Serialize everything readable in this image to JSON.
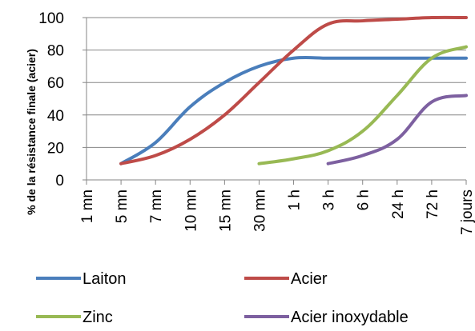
{
  "chart_data": {
    "type": "line",
    "xlabel": "",
    "ylabel": "% de la résistance finale (acier)",
    "ylim": [
      0,
      100
    ],
    "yticks": [
      0,
      20,
      40,
      60,
      80,
      100
    ],
    "categories": [
      "1 mn",
      "5 mn",
      "7 mn",
      "10 mn",
      "15 mn",
      "30 mn",
      "1 h",
      "3 h",
      "6 h",
      "24 h",
      "72 h",
      "7 jours"
    ],
    "grid": true,
    "legend": "bottom",
    "series": [
      {
        "name": "Laiton",
        "color": "#4a7ebb",
        "values": [
          null,
          10,
          23,
          45,
          60,
          70,
          75,
          75,
          75,
          75,
          75,
          75
        ]
      },
      {
        "name": "Acier",
        "color": "#be4b48",
        "values": [
          null,
          10,
          15,
          25,
          40,
          60,
          80,
          96,
          98,
          99,
          100,
          100
        ]
      },
      {
        "name": "Zinc",
        "color": "#98b954",
        "values": [
          null,
          null,
          null,
          null,
          null,
          10,
          13,
          18,
          30,
          52,
          75,
          82
        ]
      },
      {
        "name": "Acier inoxydable",
        "color": "#7d60a0",
        "values": [
          null,
          null,
          null,
          null,
          null,
          null,
          null,
          10,
          15,
          25,
          48,
          52
        ]
      }
    ]
  }
}
